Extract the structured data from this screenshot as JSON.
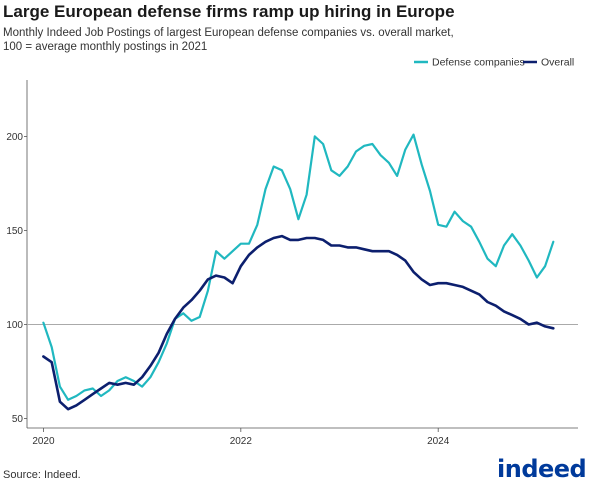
{
  "title": "Large European defense firms ramp up hiring in Europe",
  "subtitle": "Monthly Indeed Job Postings of largest European defense companies vs. overall market, 100 = average monthly postings in 2021",
  "source": "Source: Indeed.",
  "logo_text": "indeed",
  "colors": {
    "defense": "#20b8c0",
    "overall": "#0c1f6e",
    "reference": "#aaaaaa",
    "axis": "#555555"
  },
  "chart_data": {
    "type": "line",
    "x_type": "month",
    "xlim": [
      "2019-11",
      "2025-06"
    ],
    "ylim": [
      45,
      230
    ],
    "x_ticks": [
      "2020",
      "2022",
      "2024"
    ],
    "y_ticks": [
      50,
      100,
      150,
      200
    ],
    "reference_line": 100,
    "legend": {
      "position": "top-right",
      "entries": [
        "Defense companies",
        "Overall"
      ]
    },
    "grid": false,
    "series": [
      {
        "name": "Defense companies",
        "color": "#20b8c0",
        "points": [
          [
            "2020-01",
            101
          ],
          [
            "2020-02",
            88
          ],
          [
            "2020-03",
            67
          ],
          [
            "2020-04",
            60
          ],
          [
            "2020-05",
            62
          ],
          [
            "2020-06",
            65
          ],
          [
            "2020-07",
            66
          ],
          [
            "2020-08",
            62
          ],
          [
            "2020-09",
            65
          ],
          [
            "2020-10",
            70
          ],
          [
            "2020-11",
            72
          ],
          [
            "2020-12",
            70
          ],
          [
            "2021-01",
            67
          ],
          [
            "2021-02",
            72
          ],
          [
            "2021-03",
            80
          ],
          [
            "2021-04",
            90
          ],
          [
            "2021-05",
            103
          ],
          [
            "2021-06",
            106
          ],
          [
            "2021-07",
            102
          ],
          [
            "2021-08",
            104
          ],
          [
            "2021-09",
            118
          ],
          [
            "2021-10",
            139
          ],
          [
            "2021-11",
            135
          ],
          [
            "2021-12",
            139
          ],
          [
            "2022-01",
            143
          ],
          [
            "2022-02",
            143
          ],
          [
            "2022-03",
            153
          ],
          [
            "2022-04",
            172
          ],
          [
            "2022-05",
            184
          ],
          [
            "2022-06",
            182
          ],
          [
            "2022-07",
            172
          ],
          [
            "2022-08",
            156
          ],
          [
            "2022-09",
            169
          ],
          [
            "2022-10",
            200
          ],
          [
            "2022-11",
            196
          ],
          [
            "2022-12",
            182
          ],
          [
            "2023-01",
            179
          ],
          [
            "2023-02",
            184
          ],
          [
            "2023-03",
            192
          ],
          [
            "2023-04",
            195
          ],
          [
            "2023-05",
            196
          ],
          [
            "2023-06",
            190
          ],
          [
            "2023-07",
            186
          ],
          [
            "2023-08",
            179
          ],
          [
            "2023-09",
            193
          ],
          [
            "2023-10",
            201
          ],
          [
            "2023-11",
            185
          ],
          [
            "2023-12",
            171
          ],
          [
            "2024-01",
            153
          ],
          [
            "2024-02",
            152
          ],
          [
            "2024-03",
            160
          ],
          [
            "2024-04",
            155
          ],
          [
            "2024-05",
            152
          ],
          [
            "2024-06",
            144
          ],
          [
            "2024-07",
            135
          ],
          [
            "2024-08",
            131
          ],
          [
            "2024-09",
            142
          ],
          [
            "2024-10",
            148
          ],
          [
            "2024-11",
            142
          ],
          [
            "2024-12",
            134
          ],
          [
            "2025-01",
            125
          ],
          [
            "2025-02",
            131
          ],
          [
            "2025-03",
            144
          ]
        ]
      },
      {
        "name": "Overall",
        "color": "#0c1f6e",
        "points": [
          [
            "2020-01",
            83
          ],
          [
            "2020-02",
            80
          ],
          [
            "2020-03",
            59
          ],
          [
            "2020-04",
            55
          ],
          [
            "2020-05",
            57
          ],
          [
            "2020-06",
            60
          ],
          [
            "2020-07",
            63
          ],
          [
            "2020-08",
            66
          ],
          [
            "2020-09",
            69
          ],
          [
            "2020-10",
            68
          ],
          [
            "2020-11",
            69
          ],
          [
            "2020-12",
            68
          ],
          [
            "2021-01",
            72
          ],
          [
            "2021-02",
            78
          ],
          [
            "2021-03",
            85
          ],
          [
            "2021-04",
            95
          ],
          [
            "2021-05",
            103
          ],
          [
            "2021-06",
            109
          ],
          [
            "2021-07",
            113
          ],
          [
            "2021-08",
            118
          ],
          [
            "2021-09",
            124
          ],
          [
            "2021-10",
            126
          ],
          [
            "2021-11",
            125
          ],
          [
            "2021-12",
            122
          ],
          [
            "2022-01",
            131
          ],
          [
            "2022-02",
            137
          ],
          [
            "2022-03",
            141
          ],
          [
            "2022-04",
            144
          ],
          [
            "2022-05",
            146
          ],
          [
            "2022-06",
            147
          ],
          [
            "2022-07",
            145
          ],
          [
            "2022-08",
            145
          ],
          [
            "2022-09",
            146
          ],
          [
            "2022-10",
            146
          ],
          [
            "2022-11",
            145
          ],
          [
            "2022-12",
            142
          ],
          [
            "2023-01",
            142
          ],
          [
            "2023-02",
            141
          ],
          [
            "2023-03",
            141
          ],
          [
            "2023-04",
            140
          ],
          [
            "2023-05",
            139
          ],
          [
            "2023-06",
            139
          ],
          [
            "2023-07",
            139
          ],
          [
            "2023-08",
            137
          ],
          [
            "2023-09",
            134
          ],
          [
            "2023-10",
            128
          ],
          [
            "2023-11",
            124
          ],
          [
            "2023-12",
            121
          ],
          [
            "2024-01",
            122
          ],
          [
            "2024-02",
            122
          ],
          [
            "2024-03",
            121
          ],
          [
            "2024-04",
            120
          ],
          [
            "2024-05",
            118
          ],
          [
            "2024-06",
            116
          ],
          [
            "2024-07",
            112
          ],
          [
            "2024-08",
            110
          ],
          [
            "2024-09",
            107
          ],
          [
            "2024-10",
            105
          ],
          [
            "2024-11",
            103
          ],
          [
            "2024-12",
            100
          ],
          [
            "2025-01",
            101
          ],
          [
            "2025-02",
            99
          ],
          [
            "2025-03",
            98
          ]
        ]
      }
    ]
  }
}
